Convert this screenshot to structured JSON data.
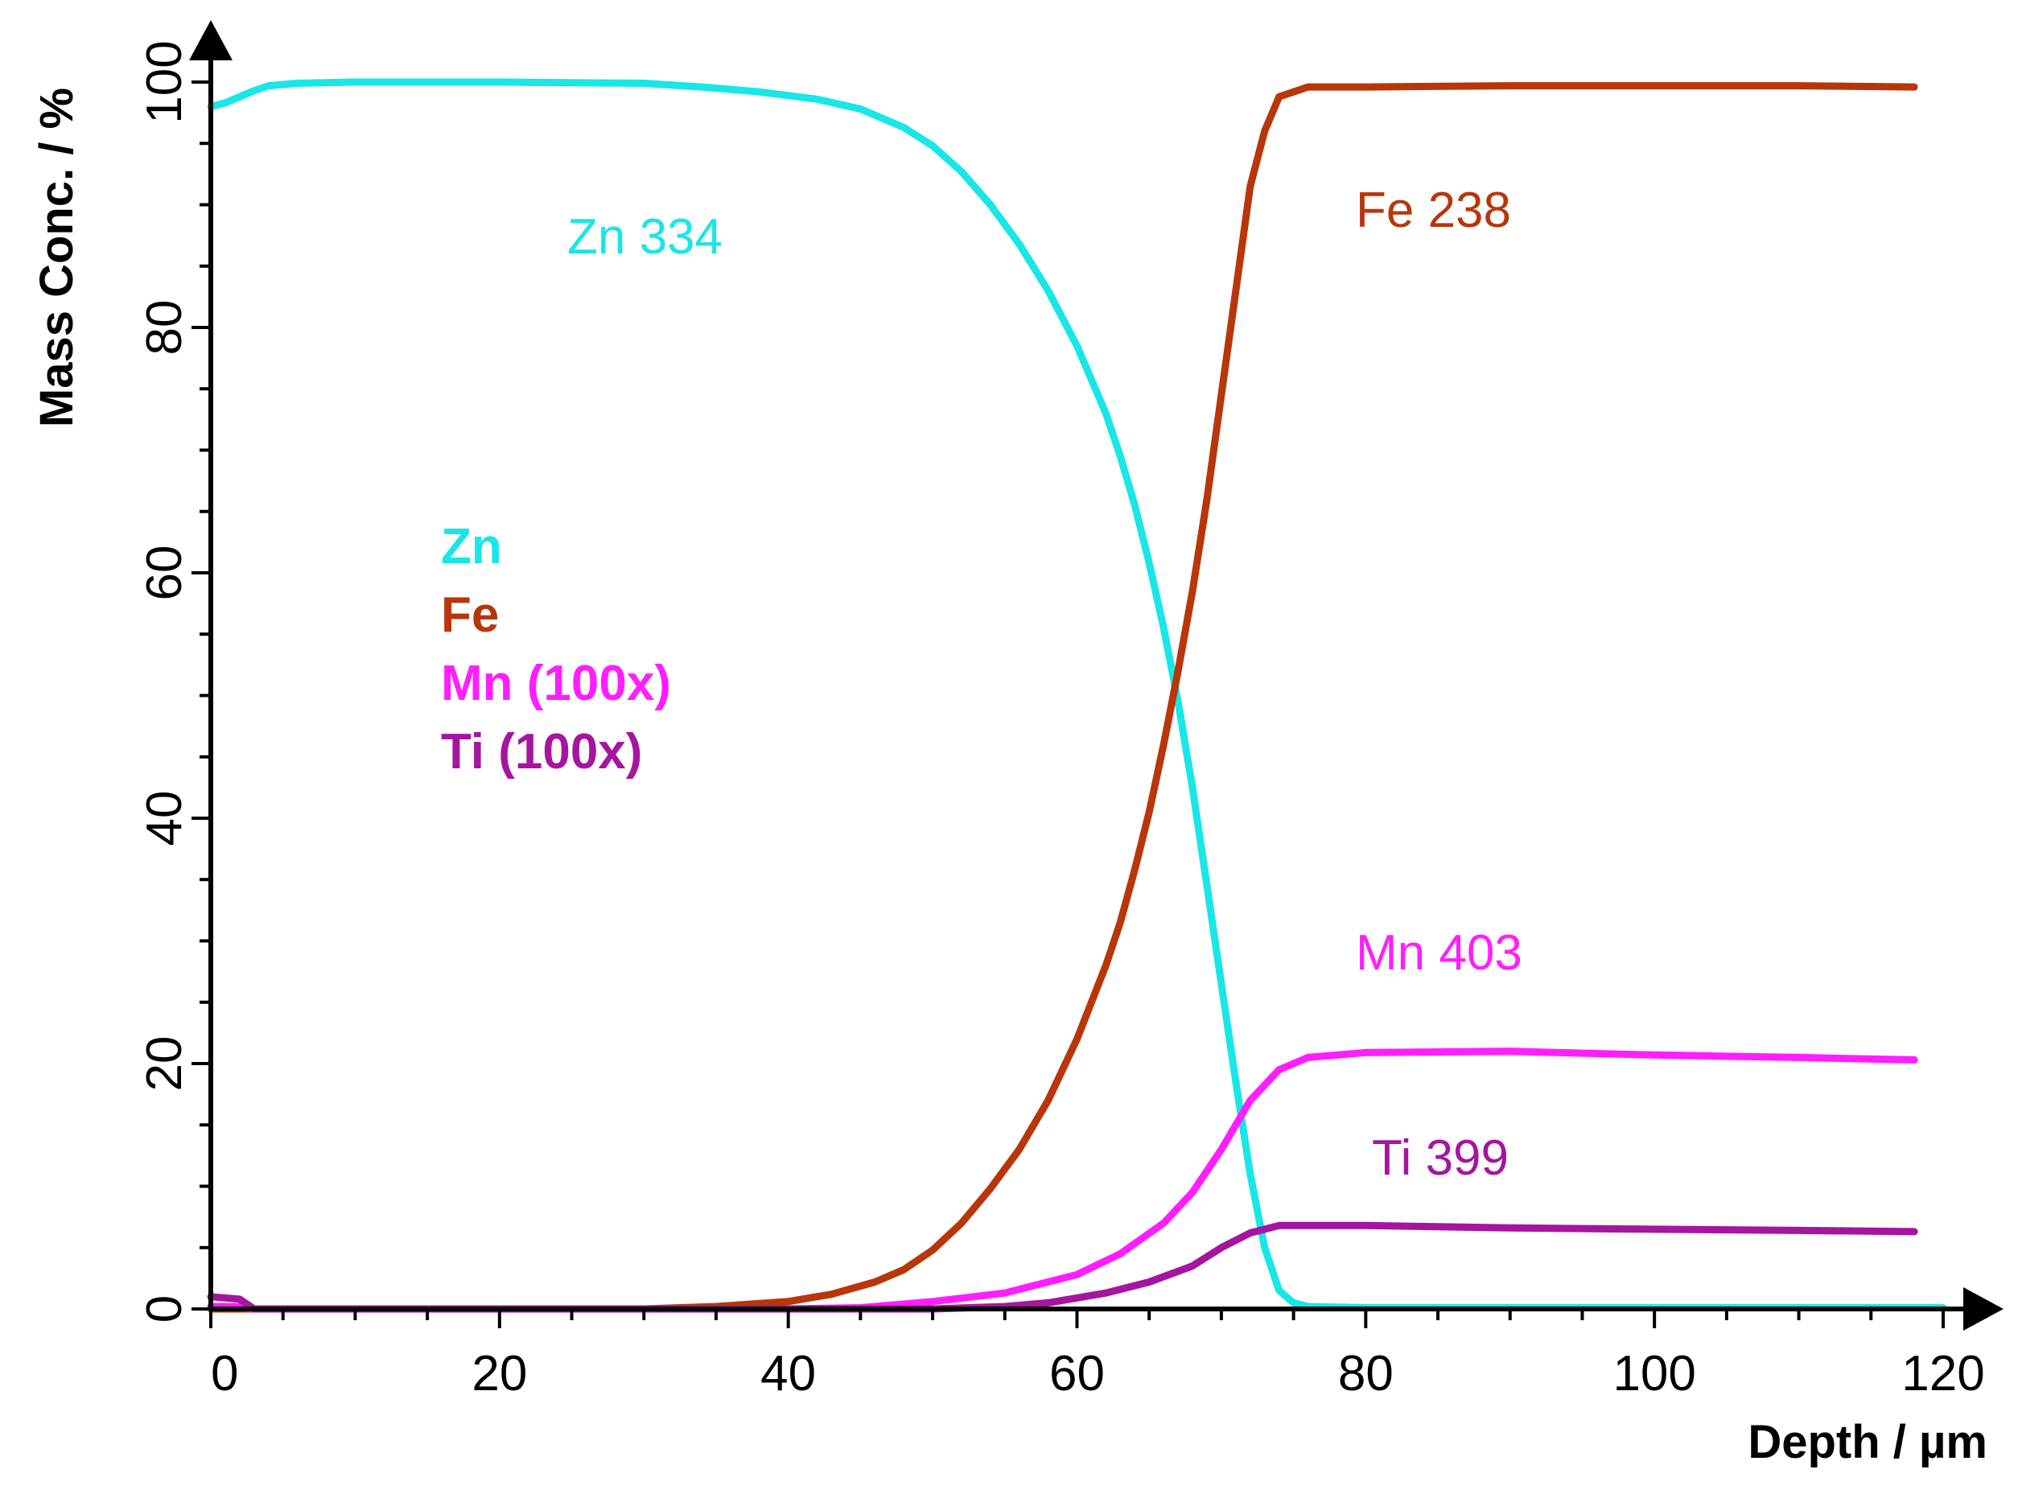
{
  "chart_data": {
    "type": "line",
    "title": "",
    "xlabel": "Depth / µm",
    "ylabel": "Mass Conc. / %",
    "xlim": [
      0,
      120
    ],
    "ylim": [
      0,
      100
    ],
    "grid": false,
    "x_ticks": [
      "0",
      "20",
      "40",
      "60",
      "80",
      "100",
      "120"
    ],
    "y_ticks": [
      "0",
      "20",
      "40",
      "60",
      "80",
      "100"
    ],
    "legend": [
      "Zn",
      "Fe",
      "Mn (100x)",
      "Ti (100x)"
    ],
    "series": [
      {
        "name": "Zn",
        "label": "Zn 334",
        "color": "#19e6e6",
        "points": [
          [
            0,
            98
          ],
          [
            1,
            98.3
          ],
          [
            2,
            98.8
          ],
          [
            3,
            99.3
          ],
          [
            4,
            99.7
          ],
          [
            6,
            99.9
          ],
          [
            10,
            100
          ],
          [
            20,
            100
          ],
          [
            30,
            99.9
          ],
          [
            34,
            99.6
          ],
          [
            38,
            99.2
          ],
          [
            42,
            98.6
          ],
          [
            45,
            97.8
          ],
          [
            48,
            96.3
          ],
          [
            50,
            94.8
          ],
          [
            52,
            92.7
          ],
          [
            54,
            90
          ],
          [
            56,
            86.8
          ],
          [
            58,
            83
          ],
          [
            60,
            78.5
          ],
          [
            62,
            73
          ],
          [
            63,
            69.5
          ],
          [
            64,
            65.5
          ],
          [
            65,
            60.8
          ],
          [
            66,
            55.5
          ],
          [
            67,
            49.5
          ],
          [
            68,
            42.5
          ],
          [
            69,
            34.5
          ],
          [
            70,
            26.5
          ],
          [
            71,
            18.5
          ],
          [
            72,
            11
          ],
          [
            73,
            5
          ],
          [
            74,
            1.5
          ],
          [
            75,
            0.5
          ],
          [
            76,
            0.2
          ],
          [
            80,
            0.1
          ],
          [
            120,
            0.1
          ]
        ]
      },
      {
        "name": "Fe",
        "label": "Fe 238",
        "color": "#b8360a",
        "points": [
          [
            0,
            0
          ],
          [
            30,
            0
          ],
          [
            35,
            0.2
          ],
          [
            40,
            0.6
          ],
          [
            43,
            1.2
          ],
          [
            46,
            2.2
          ],
          [
            48,
            3.2
          ],
          [
            50,
            4.8
          ],
          [
            52,
            7
          ],
          [
            54,
            9.8
          ],
          [
            56,
            13
          ],
          [
            58,
            17
          ],
          [
            60,
            22
          ],
          [
            62,
            28
          ],
          [
            63,
            31.5
          ],
          [
            64,
            35.8
          ],
          [
            65,
            40.5
          ],
          [
            66,
            46
          ],
          [
            67,
            52
          ],
          [
            68,
            58.5
          ],
          [
            69,
            66
          ],
          [
            70,
            74.5
          ],
          [
            71,
            83
          ],
          [
            72,
            91.5
          ],
          [
            73,
            96
          ],
          [
            74,
            98.8
          ],
          [
            76,
            99.6
          ],
          [
            80,
            99.6
          ],
          [
            90,
            99.7
          ],
          [
            100,
            99.7
          ],
          [
            110,
            99.7
          ],
          [
            118,
            99.6
          ]
        ]
      },
      {
        "name": "Mn (100x)",
        "label": "Mn 403",
        "color": "#ff1eff",
        "points": [
          [
            0,
            0.2
          ],
          [
            2,
            0.2
          ],
          [
            3,
            0
          ],
          [
            40,
            0
          ],
          [
            45,
            0.1
          ],
          [
            50,
            0.6
          ],
          [
            55,
            1.3
          ],
          [
            60,
            2.8
          ],
          [
            63,
            4.5
          ],
          [
            66,
            7
          ],
          [
            68,
            9.5
          ],
          [
            70,
            13
          ],
          [
            72,
            17
          ],
          [
            74,
            19.5
          ],
          [
            76,
            20.5
          ],
          [
            80,
            20.9
          ],
          [
            90,
            21
          ],
          [
            100,
            20.7
          ],
          [
            110,
            20.5
          ],
          [
            118,
            20.3
          ]
        ]
      },
      {
        "name": "Ti (100x)",
        "label": "Ti 399",
        "color": "#a5159f",
        "points": [
          [
            0,
            1
          ],
          [
            2,
            0.8
          ],
          [
            3,
            0
          ],
          [
            50,
            0
          ],
          [
            55,
            0.2
          ],
          [
            58,
            0.5
          ],
          [
            62,
            1.3
          ],
          [
            65,
            2.2
          ],
          [
            68,
            3.5
          ],
          [
            70,
            5
          ],
          [
            72,
            6.2
          ],
          [
            74,
            6.8
          ],
          [
            80,
            6.8
          ],
          [
            90,
            6.6
          ],
          [
            100,
            6.5
          ],
          [
            110,
            6.4
          ],
          [
            118,
            6.3
          ]
        ]
      }
    ]
  }
}
